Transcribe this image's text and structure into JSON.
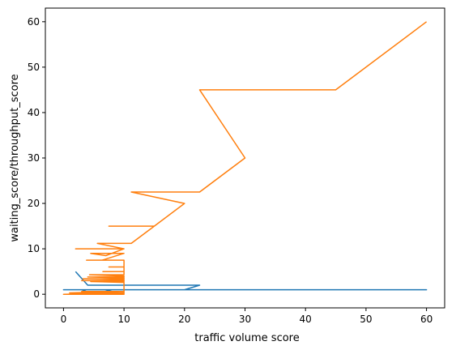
{
  "chart_data": {
    "type": "line",
    "title": "",
    "xlabel": "traffic volume score",
    "ylabel": "waiting_score/throughput_score",
    "xlim": [
      -3,
      63
    ],
    "ylim": [
      -3,
      63
    ],
    "xticks": [
      0,
      10,
      20,
      30,
      40,
      50,
      60
    ],
    "yticks": [
      0,
      10,
      20,
      30,
      40,
      50,
      60
    ],
    "grid": false,
    "series": [
      {
        "color": "#1f77b4",
        "points": [
          [
            2,
            5
          ],
          [
            4,
            2
          ],
          [
            22.5,
            2
          ],
          [
            20,
            1
          ],
          [
            60,
            1
          ],
          [
            1,
            1
          ],
          [
            0,
            1
          ],
          [
            3,
            1
          ],
          [
            5,
            0
          ],
          [
            8,
            1
          ],
          [
            10,
            1
          ],
          [
            15,
            1
          ],
          [
            60,
            1
          ]
        ]
      },
      {
        "color": "#ff7f0e",
        "points": [
          [
            60,
            60
          ],
          [
            45,
            45
          ],
          [
            22.5,
            45
          ],
          [
            30,
            30
          ],
          [
            22.5,
            22.5
          ],
          [
            11.2,
            22.5
          ],
          [
            20,
            20
          ],
          [
            15,
            15
          ],
          [
            7.5,
            15
          ],
          [
            15,
            15
          ],
          [
            11.2,
            11.2
          ],
          [
            5.6,
            11.2
          ],
          [
            10,
            10
          ],
          [
            2,
            10
          ],
          [
            10,
            10
          ],
          [
            7,
            8.5
          ],
          [
            4.5,
            9
          ],
          [
            10,
            9
          ],
          [
            6.4,
            7.5
          ],
          [
            3.8,
            7.5
          ],
          [
            10,
            7.5
          ],
          [
            10,
            6
          ],
          [
            7.5,
            6
          ],
          [
            10,
            6
          ],
          [
            10,
            5
          ],
          [
            6.5,
            5
          ],
          [
            10,
            5
          ],
          [
            10,
            4.3
          ],
          [
            4.3,
            4.3
          ],
          [
            10,
            4
          ],
          [
            10,
            3.8
          ],
          [
            4,
            3.8
          ],
          [
            10,
            3.6
          ],
          [
            10,
            3.4
          ],
          [
            3.2,
            3.4
          ],
          [
            10,
            3.2
          ],
          [
            10,
            3
          ],
          [
            3,
            3
          ],
          [
            10,
            3
          ],
          [
            10,
            2.8
          ],
          [
            4.5,
            2.8
          ],
          [
            10,
            2.6
          ],
          [
            10,
            2
          ],
          [
            10,
            1.2
          ],
          [
            10,
            0.8
          ],
          [
            10,
            0.4
          ],
          [
            10,
            0
          ],
          [
            2,
            0
          ],
          [
            0,
            0
          ],
          [
            10,
            0
          ],
          [
            3,
            0.6
          ],
          [
            10,
            0.6
          ],
          [
            1,
            0.3
          ],
          [
            10,
            0.3
          ],
          [
            0,
            0
          ]
        ]
      }
    ]
  }
}
